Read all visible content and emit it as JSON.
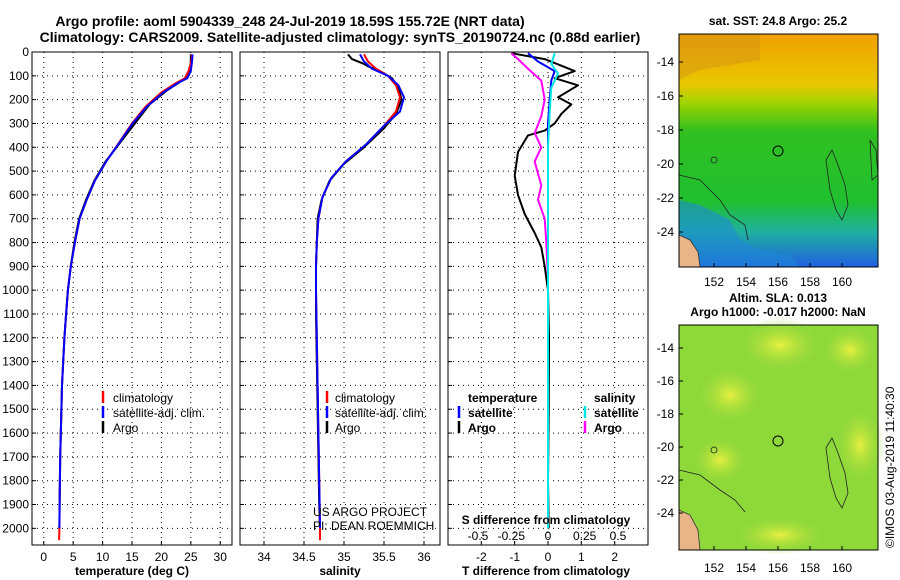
{
  "header": {
    "line1": "Argo profile: aoml 5904339_248 24-Jul-2019 18.59S 155.72E (NRT data)",
    "line2": "Climatology: CARS2009. Satellite-adjusted climatology: synTS_20190724.nc (0.88d earlier)"
  },
  "colors": {
    "climatology": "#ff0000",
    "satellite": "#0000ff",
    "argo": "#000000",
    "argo_sal_diff": "#ff00ff",
    "sat_sal_diff": "#00e5e5"
  },
  "depth_axis": {
    "ticks": [
      0,
      100,
      200,
      300,
      400,
      500,
      600,
      700,
      800,
      900,
      1000,
      1100,
      1200,
      1300,
      1400,
      1500,
      1600,
      1700,
      1800,
      1900,
      2000
    ],
    "ylim": [
      0,
      2070
    ]
  },
  "chart_data": [
    {
      "type": "line",
      "name": "temperature",
      "xlabel": "temperature (deg C)",
      "xlim": [
        -2,
        32
      ],
      "xticks": [
        0,
        5,
        10,
        15,
        20,
        25,
        30
      ],
      "legend": [
        {
          "key": "climatology",
          "label": "climatology",
          "color": "#ff0000"
        },
        {
          "key": "satellite",
          "label": "satellite-adj. clim.",
          "color": "#0000ff"
        },
        {
          "key": "argo",
          "label": "Argo",
          "color": "#000000"
        }
      ],
      "series": [
        {
          "name": "Argo",
          "color": "#000000",
          "points": [
            [
              25,
              10
            ],
            [
              25,
              40
            ],
            [
              24.9,
              80
            ],
            [
              24.5,
              100
            ],
            [
              23.5,
              120
            ],
            [
              21,
              160
            ],
            [
              18,
              220
            ],
            [
              15.5,
              300
            ],
            [
              13,
              380
            ],
            [
              10.5,
              460
            ],
            [
              8.6,
              540
            ],
            [
              7.2,
              620
            ],
            [
              6,
              700
            ],
            [
              5.2,
              800
            ],
            [
              4.6,
              900
            ],
            [
              4.1,
              1000
            ],
            [
              3.8,
              1100
            ],
            [
              3.5,
              1200
            ],
            [
              3.3,
              1300
            ],
            [
              3.1,
              1400
            ],
            [
              3,
              1500
            ],
            [
              2.9,
              1600
            ],
            [
              2.8,
              1700
            ],
            [
              2.75,
              1800
            ],
            [
              2.7,
              1900
            ],
            [
              2.65,
              2000
            ]
          ]
        },
        {
          "name": "climatology",
          "color": "#ff0000",
          "points": [
            [
              25.2,
              10
            ],
            [
              25.1,
              40
            ],
            [
              24.6,
              80
            ],
            [
              24,
              110
            ],
            [
              22.5,
              130
            ],
            [
              20,
              170
            ],
            [
              17.3,
              230
            ],
            [
              15,
              300
            ],
            [
              12.8,
              380
            ],
            [
              10.6,
              460
            ],
            [
              8.7,
              540
            ],
            [
              7.3,
              620
            ],
            [
              6.1,
              700
            ],
            [
              5.3,
              800
            ],
            [
              4.6,
              900
            ],
            [
              4.1,
              1000
            ],
            [
              3.8,
              1100
            ],
            [
              3.5,
              1200
            ],
            [
              3.3,
              1300
            ],
            [
              3.1,
              1400
            ],
            [
              3,
              1500
            ],
            [
              2.9,
              1600
            ],
            [
              2.8,
              1700
            ],
            [
              2.75,
              1800
            ],
            [
              2.7,
              1900
            ],
            [
              2.65,
              2000
            ],
            [
              2.6,
              2050
            ]
          ]
        },
        {
          "name": "satellite-adj. clim.",
          "color": "#0000ff",
          "points": [
            [
              25.3,
              10
            ],
            [
              25.2,
              40
            ],
            [
              25,
              80
            ],
            [
              24.4,
              110
            ],
            [
              22.8,
              130
            ],
            [
              20.3,
              170
            ],
            [
              17.5,
              230
            ],
            [
              15.1,
              300
            ],
            [
              12.9,
              380
            ],
            [
              10.6,
              460
            ],
            [
              8.7,
              540
            ],
            [
              7.3,
              620
            ],
            [
              6.1,
              700
            ],
            [
              5.3,
              800
            ],
            [
              4.6,
              900
            ],
            [
              4.1,
              1000
            ],
            [
              3.8,
              1100
            ],
            [
              3.5,
              1200
            ],
            [
              3.3,
              1300
            ],
            [
              3.1,
              1400
            ],
            [
              3,
              1500
            ],
            [
              2.9,
              1600
            ],
            [
              2.8,
              1700
            ],
            [
              2.75,
              1800
            ],
            [
              2.7,
              1900
            ],
            [
              2.65,
              2000
            ]
          ]
        }
      ]
    },
    {
      "type": "line",
      "name": "salinity",
      "xlabel": "salinity",
      "xlim": [
        33.7,
        36.2
      ],
      "xticks": [
        34,
        34.5,
        35,
        35.5,
        36
      ],
      "legend": [
        {
          "key": "climatology",
          "label": "climatology",
          "color": "#ff0000"
        },
        {
          "key": "satellite",
          "label": "satellite-adj. clim.",
          "color": "#0000ff"
        },
        {
          "key": "argo",
          "label": "Argo",
          "color": "#000000"
        }
      ],
      "series": [
        {
          "name": "Argo",
          "color": "#000000",
          "points": [
            [
              35.05,
              10
            ],
            [
              35.1,
              30
            ],
            [
              35.25,
              50
            ],
            [
              35.3,
              60
            ],
            [
              35.45,
              80
            ],
            [
              35.6,
              110
            ],
            [
              35.68,
              150
            ],
            [
              35.72,
              200
            ],
            [
              35.65,
              260
            ],
            [
              35.5,
              320
            ],
            [
              35.25,
              400
            ],
            [
              35,
              470
            ],
            [
              34.82,
              540
            ],
            [
              34.72,
              620
            ],
            [
              34.67,
              700
            ],
            [
              34.66,
              800
            ],
            [
              34.65,
              900
            ],
            [
              34.65,
              1000
            ],
            [
              34.65,
              1100
            ],
            [
              34.66,
              1300
            ],
            [
              34.67,
              1500
            ],
            [
              34.68,
              1700
            ],
            [
              34.69,
              1900
            ],
            [
              34.7,
              2000
            ]
          ]
        },
        {
          "name": "climatology",
          "color": "#ff0000",
          "points": [
            [
              35.25,
              10
            ],
            [
              35.3,
              40
            ],
            [
              35.4,
              70
            ],
            [
              35.55,
              100
            ],
            [
              35.65,
              140
            ],
            [
              35.7,
              190
            ],
            [
              35.65,
              250
            ],
            [
              35.5,
              310
            ],
            [
              35.27,
              390
            ],
            [
              35.02,
              460
            ],
            [
              34.84,
              530
            ],
            [
              34.73,
              610
            ],
            [
              34.68,
              700
            ],
            [
              34.66,
              800
            ],
            [
              34.65,
              900
            ],
            [
              34.65,
              1000
            ],
            [
              34.66,
              1200
            ],
            [
              34.67,
              1400
            ],
            [
              34.68,
              1600
            ],
            [
              34.69,
              1800
            ],
            [
              34.7,
              2000
            ],
            [
              34.7,
              2050
            ]
          ]
        },
        {
          "name": "satellite-adj. clim.",
          "color": "#0000ff",
          "points": [
            [
              35.2,
              10
            ],
            [
              35.25,
              40
            ],
            [
              35.35,
              70
            ],
            [
              35.55,
              100
            ],
            [
              35.68,
              140
            ],
            [
              35.75,
              190
            ],
            [
              35.7,
              250
            ],
            [
              35.5,
              310
            ],
            [
              35.27,
              390
            ],
            [
              35.02,
              460
            ],
            [
              34.84,
              530
            ],
            [
              34.73,
              610
            ],
            [
              34.68,
              700
            ],
            [
              34.66,
              800
            ],
            [
              34.65,
              900
            ],
            [
              34.65,
              1000
            ],
            [
              34.66,
              1200
            ],
            [
              34.67,
              1400
            ],
            [
              34.68,
              1600
            ],
            [
              34.69,
              1800
            ],
            [
              34.7,
              2000
            ]
          ]
        }
      ]
    },
    {
      "type": "line",
      "name": "difference",
      "xlabel": "T difference from climatology",
      "xlabel2": "S difference from climatology",
      "xlim": [
        -3,
        3
      ],
      "xticks": [
        -2,
        -1,
        0,
        1,
        2
      ],
      "xticks2": [
        {
          "v": -2.1,
          "label": "-0.5"
        },
        {
          "v": -1.1,
          "label": "-0.25"
        },
        {
          "v": 0,
          "label": "0"
        },
        {
          "v": 1.1,
          "label": "0.25"
        },
        {
          "v": 2.1,
          "label": "0.5"
        }
      ],
      "legend": {
        "temperature": "temperature",
        "salinity": "salinity",
        "satellite": "satellite",
        "argo": "Argo"
      },
      "series": [
        {
          "name": "T Argo",
          "color": "#000000",
          "points": [
            [
              -1.1,
              5
            ],
            [
              -0.1,
              30
            ],
            [
              0.8,
              80
            ],
            [
              0.2,
              110
            ],
            [
              0.9,
              140
            ],
            [
              0.3,
              190
            ],
            [
              0.7,
              220
            ],
            [
              0.4,
              260
            ],
            [
              0.2,
              300
            ],
            [
              -0.1,
              330
            ],
            [
              -0.6,
              350
            ],
            [
              -0.9,
              420
            ],
            [
              -1,
              520
            ],
            [
              -0.9,
              600
            ],
            [
              -0.7,
              680
            ],
            [
              -0.4,
              760
            ],
            [
              -0.2,
              820
            ],
            [
              -0.1,
              900
            ],
            [
              0,
              1000
            ],
            [
              0.03,
              1200
            ],
            [
              0.02,
              1500
            ],
            [
              0,
              1800
            ],
            [
              0.02,
              2000
            ]
          ]
        },
        {
          "name": "T satellite",
          "color": "#0000ff",
          "points": [
            [
              -0.6,
              5
            ],
            [
              -0.3,
              40
            ],
            [
              0.2,
              80
            ],
            [
              0.1,
              120
            ],
            [
              0.05,
              200
            ],
            [
              0,
              300
            ],
            [
              0,
              600
            ],
            [
              0,
              1000
            ],
            [
              0,
              1500
            ],
            [
              0,
              2000
            ]
          ]
        },
        {
          "name": "S Argo",
          "color": "#ff00ff",
          "points": [
            [
              -1.1,
              5
            ],
            [
              -0.9,
              30
            ],
            [
              -0.6,
              70
            ],
            [
              -0.2,
              120
            ],
            [
              -0.1,
              200
            ],
            [
              -0.2,
              270
            ],
            [
              -0.4,
              340
            ],
            [
              -0.2,
              400
            ],
            [
              -0.4,
              460
            ],
            [
              -0.2,
              560
            ],
            [
              -0.3,
              620
            ],
            [
              -0.1,
              700
            ],
            [
              -0.05,
              800
            ],
            [
              0,
              950
            ],
            [
              0,
              1100
            ]
          ]
        },
        {
          "name": "S satellite",
          "color": "#00e5e5",
          "points": [
            [
              0.2,
              5
            ],
            [
              0.1,
              50
            ],
            [
              0.3,
              90
            ],
            [
              0.1,
              150
            ],
            [
              0.05,
              250
            ],
            [
              0,
              400
            ],
            [
              0,
              700
            ],
            [
              0,
              1000
            ],
            [
              0,
              1500
            ],
            [
              0,
              2000
            ]
          ]
        }
      ]
    }
  ],
  "watermark": {
    "line1": "US ARGO PROJECT",
    "line2": "PI: DEAN ROEMMICH"
  },
  "maps": {
    "top": {
      "title": "sat. SST: 24.8 Argo: 25.2"
    },
    "bottom": {
      "title1": "Altim. SLA: 0.013",
      "title2": "Argo h1000: -0.017 h2000: NaN"
    },
    "lat_ticks": [
      "-14",
      "-16",
      "-18",
      "-20",
      "-22",
      "-24"
    ],
    "lon_ticks": [
      "152",
      "154",
      "156",
      "158",
      "160"
    ]
  },
  "credit": "©IMOS 03-Aug-2019 11:40:30"
}
